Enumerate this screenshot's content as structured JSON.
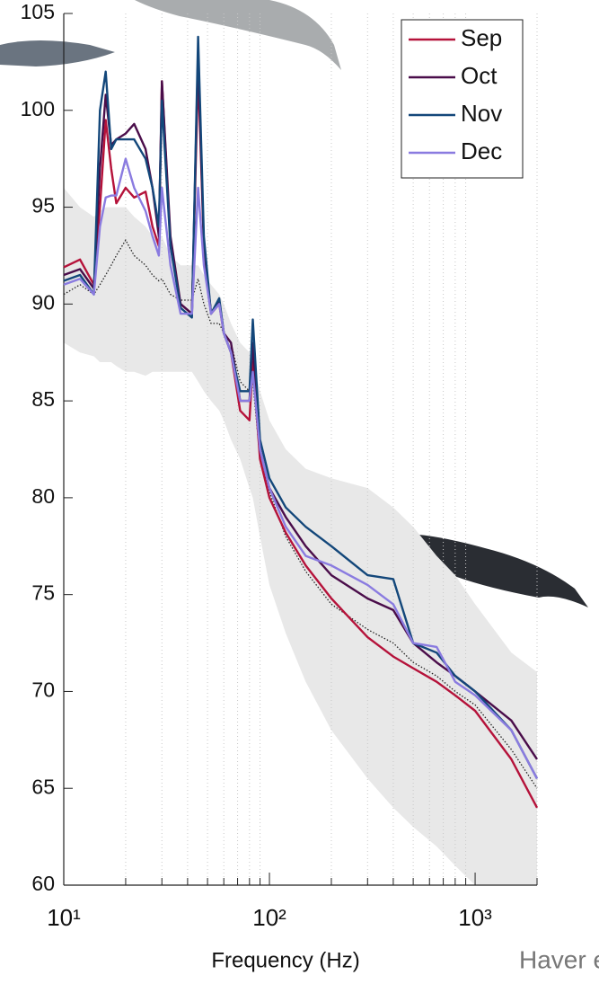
{
  "chart_data": {
    "type": "line",
    "xlabel": "Frequency (Hz)",
    "source": "Haver et",
    "log_x": true,
    "grid": true,
    "xlim": [
      10,
      2000
    ],
    "ylim": [
      60,
      105
    ],
    "xticks": [
      {
        "value": 10,
        "label": "10¹"
      },
      {
        "value": 100,
        "label": "10²"
      },
      {
        "value": 1000,
        "label": "10³"
      }
    ],
    "xminorticks": [
      20,
      30,
      40,
      50,
      60,
      70,
      80,
      90,
      200,
      300,
      400,
      500,
      600,
      700,
      800,
      900,
      2000
    ],
    "yticks": [
      60,
      65,
      70,
      75,
      80,
      85,
      90,
      95,
      100,
      105
    ],
    "x": [
      10,
      12,
      14,
      15,
      16,
      17,
      18,
      20,
      22,
      25,
      27,
      29,
      30,
      33,
      37,
      42,
      45,
      48,
      52,
      57,
      60,
      65,
      72,
      80,
      83,
      90,
      100,
      120,
      150,
      200,
      300,
      400,
      500,
      650,
      800,
      1000,
      1500,
      2000
    ],
    "band": {
      "color": "#e8e8e8",
      "upper": [
        96,
        95,
        94.5,
        94.8,
        95,
        95,
        95,
        95,
        94.5,
        94,
        93.5,
        93.5,
        93.5,
        92.5,
        92,
        92,
        92,
        91.5,
        91,
        90.5,
        90,
        89,
        88,
        87.5,
        87,
        85.5,
        84,
        82.5,
        81.5,
        81,
        80.5,
        79.5,
        78.5,
        77,
        76,
        74.5,
        72,
        71
      ],
      "lower": [
        88,
        87.5,
        87.3,
        87,
        87,
        87,
        86.8,
        86.5,
        86.5,
        86.3,
        86.5,
        86.5,
        86.5,
        86.5,
        86.5,
        86.5,
        86,
        85.5,
        85,
        84.5,
        84,
        83,
        82,
        80.5,
        80,
        78,
        75.5,
        73,
        70.5,
        68,
        65.5,
        64,
        63,
        62,
        61,
        60,
        60,
        60
      ]
    },
    "median": {
      "color": "#222",
      "values": [
        90.5,
        91,
        90.5,
        91,
        91.5,
        92,
        92.5,
        93.3,
        92.5,
        92,
        91.5,
        91.2,
        91.3,
        90.5,
        90.2,
        90.2,
        91.3,
        90,
        89,
        89,
        88.5,
        88,
        86,
        85.5,
        86,
        82,
        80.3,
        78,
        76.2,
        74.5,
        73.2,
        72.5,
        71.5,
        70.8,
        70,
        69.3,
        67,
        65
      ]
    },
    "legend": "upper right",
    "series": [
      {
        "name": "Sep",
        "color": "#b5123a",
        "values": [
          91.9,
          92.3,
          91.0,
          95.0,
          99.5,
          97.0,
          95.2,
          96.0,
          95.5,
          95.8,
          94.0,
          93.0,
          101.5,
          93.0,
          90.0,
          89.5,
          102,
          93,
          89.5,
          90,
          88.5,
          87.5,
          84.5,
          84,
          87,
          82,
          80,
          78.2,
          76.5,
          74.8,
          72.8,
          71.8,
          71.2,
          70.5,
          69.8,
          69,
          66.5,
          64
        ]
      },
      {
        "name": "Oct",
        "color": "#4a0d4a",
        "values": [
          91.5,
          91.8,
          90.8,
          97,
          100.8,
          98.2,
          98.5,
          98.8,
          99.3,
          98,
          96,
          93.5,
          101.5,
          93.5,
          90,
          89.5,
          103,
          93,
          89.5,
          90.2,
          88.5,
          88,
          85,
          85,
          88,
          82.5,
          80.5,
          79,
          77.5,
          76,
          74.8,
          74.2,
          72.5,
          71.5,
          70.8,
          70,
          68.5,
          66.5
        ]
      },
      {
        "name": "Nov",
        "color": "#13477a",
        "values": [
          91.2,
          91.5,
          90.5,
          100,
          102,
          98,
          98.5,
          98.5,
          98.5,
          97.5,
          96,
          94,
          100.5,
          93,
          89.8,
          89.3,
          103.8,
          93.5,
          89.5,
          90.3,
          88.5,
          87.5,
          85.5,
          85.5,
          89.2,
          83,
          81,
          79.5,
          78.5,
          77.5,
          76,
          75.8,
          72.5,
          72,
          70.8,
          70,
          68,
          65.5
        ]
      },
      {
        "name": "Dec",
        "color": "#8a7be0",
        "values": [
          91,
          91.3,
          90.5,
          94,
          95.5,
          95.6,
          95.6,
          97.5,
          96,
          94.8,
          93.5,
          92.5,
          96,
          92,
          89.5,
          89.5,
          96,
          92,
          89.5,
          90,
          88.5,
          87.5,
          85,
          85,
          86.5,
          82.5,
          80.5,
          78.5,
          77,
          76.5,
          75.5,
          74.5,
          72.5,
          72.3,
          70.5,
          69.8,
          68,
          65.5
        ]
      }
    ]
  }
}
